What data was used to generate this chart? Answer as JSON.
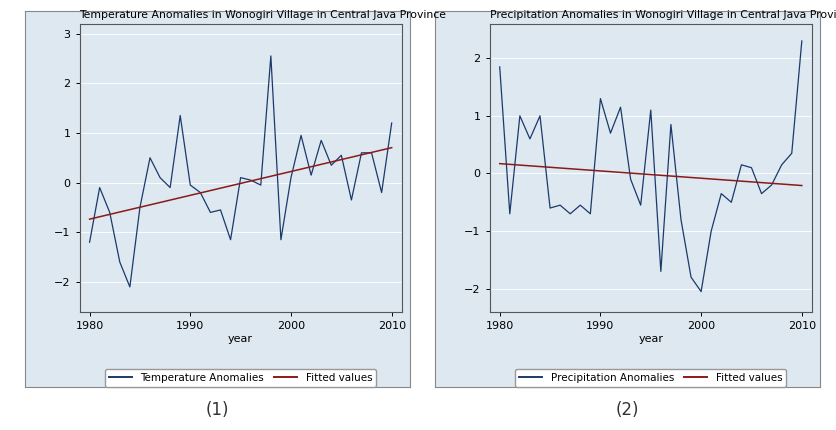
{
  "temp_years": [
    1980,
    1981,
    1982,
    1983,
    1984,
    1985,
    1986,
    1987,
    1988,
    1989,
    1990,
    1991,
    1992,
    1993,
    1994,
    1995,
    1996,
    1997,
    1998,
    1999,
    2000,
    2001,
    2002,
    2003,
    2004,
    2005,
    2006,
    2007,
    2008,
    2009,
    2010
  ],
  "temp_values": [
    -1.2,
    -0.1,
    -0.6,
    -1.6,
    -2.1,
    -0.5,
    0.5,
    0.1,
    -0.1,
    1.35,
    -0.05,
    -0.2,
    -0.6,
    -0.55,
    -1.15,
    0.1,
    0.05,
    -0.05,
    2.55,
    -1.15,
    0.1,
    0.95,
    0.15,
    0.85,
    0.35,
    0.55,
    -0.35,
    0.6,
    0.6,
    -0.2,
    1.2
  ],
  "precip_years": [
    1980,
    1981,
    1982,
    1983,
    1984,
    1985,
    1986,
    1987,
    1988,
    1989,
    1990,
    1991,
    1992,
    1993,
    1994,
    1995,
    1996,
    1997,
    1998,
    1999,
    2000,
    2001,
    2002,
    2003,
    2004,
    2005,
    2006,
    2007,
    2008,
    2009,
    2010
  ],
  "precip_values": [
    1.85,
    -0.7,
    1.0,
    0.6,
    1.0,
    -0.6,
    -0.55,
    -0.7,
    -0.55,
    -0.7,
    1.3,
    0.7,
    1.15,
    -0.1,
    -0.55,
    1.1,
    -1.7,
    0.85,
    -0.8,
    -1.8,
    -2.05,
    -1.0,
    -0.35,
    -0.5,
    0.15,
    0.1,
    -0.35,
    -0.2,
    0.15,
    0.35,
    2.3
  ],
  "title1": "Temperature Anomalies in Wonogiri Village in Central Java Province",
  "title2": "Precipitation Anomalies in Wonogiri Village in Central Java Province",
  "xlabel": "year",
  "xlim": [
    1979,
    2011
  ],
  "ylim1": [
    -2.6,
    3.2
  ],
  "ylim2": [
    -2.4,
    2.6
  ],
  "yticks1": [
    -2,
    -1,
    0,
    1,
    2,
    3
  ],
  "yticks2": [
    -2,
    -1,
    0,
    1,
    2
  ],
  "xticks": [
    1980,
    1990,
    2000,
    2010
  ],
  "line_color": "#1B3A6B",
  "fit_color": "#8B1A1A",
  "bg_color": "#DDE8F0",
  "legend_label1": "Temperature Anomalies",
  "legend_label2": "Precipitation Anomalies",
  "legend_fit_label": "Fitted values",
  "caption1": "(1)",
  "caption2": "(2)",
  "title_fontsize": 7.8,
  "tick_fontsize": 8.0,
  "legend_fontsize": 7.5
}
